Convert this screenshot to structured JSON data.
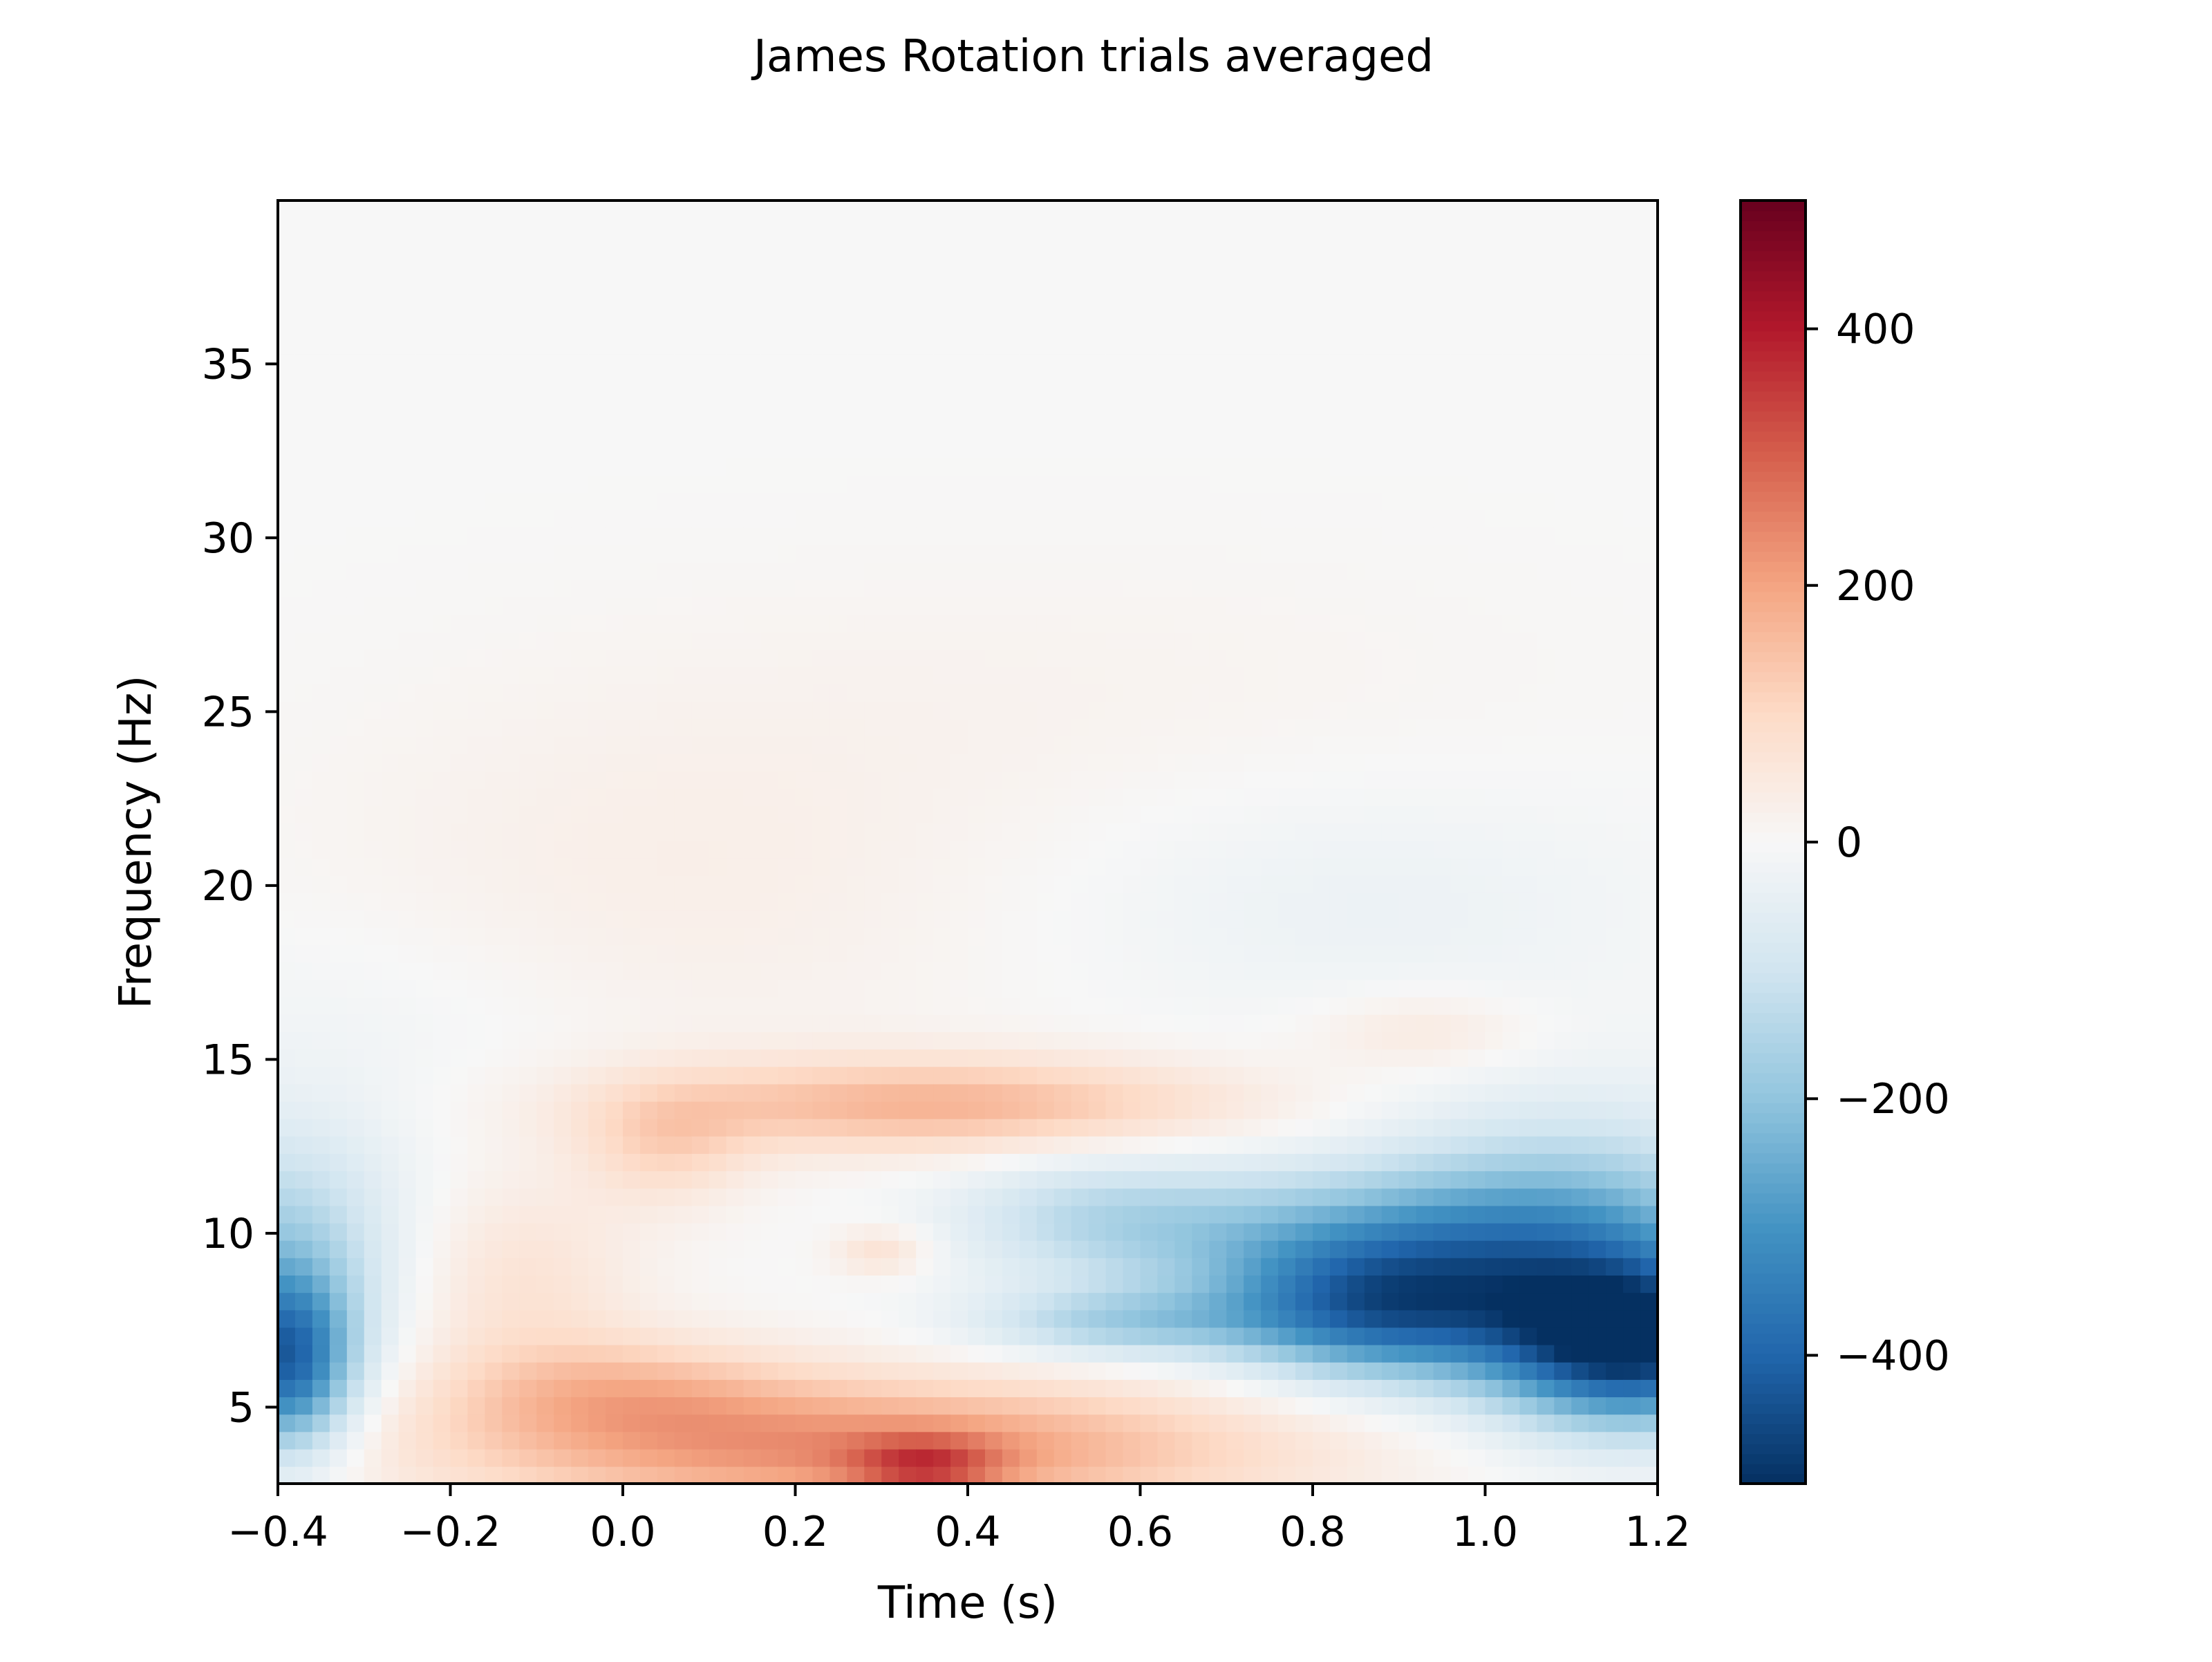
{
  "chart_data": {
    "type": "heatmap",
    "title": "James Rotation trials averaged",
    "xlabel": "Time (s)",
    "ylabel": "Frequency (Hz)",
    "xlim": [
      -0.4,
      1.2
    ],
    "ylim": [
      2.8,
      39.7
    ],
    "x_ticks": [
      -0.4,
      -0.2,
      0.0,
      0.2,
      0.4,
      0.6,
      0.8,
      1.0,
      1.2
    ],
    "x_tick_labels": [
      "−0.4",
      "−0.2",
      "0.0",
      "0.2",
      "0.4",
      "0.6",
      "0.8",
      "1.0",
      "1.2"
    ],
    "y_ticks": [
      5,
      10,
      15,
      20,
      25,
      30,
      35
    ],
    "y_tick_labels": [
      "5",
      "10",
      "15",
      "20",
      "25",
      "30",
      "35"
    ],
    "colorbar": {
      "colormap": "RdBu_r",
      "vmin": -500,
      "vmax": 500,
      "ticks": [
        400,
        200,
        0,
        -200,
        -400
      ],
      "tick_labels": [
        "400",
        "200",
        "0",
        "−200",
        "−400"
      ]
    },
    "grid": false,
    "resolution": {
      "time_step_s": 0.02,
      "freq_step_hz": 0.5
    },
    "features": [
      {
        "t": 0.35,
        "f": 3.5,
        "value": 400
      },
      {
        "t": 0.25,
        "f": 4.5,
        "value": 300
      },
      {
        "t": 0.0,
        "f": 5.5,
        "value": 240
      },
      {
        "t": 0.35,
        "f": 13.7,
        "value": 190
      },
      {
        "t": 0.05,
        "f": 12.5,
        "value": 120
      },
      {
        "t": 0.3,
        "f": 9.5,
        "value": 110
      },
      {
        "t": 0.93,
        "f": 15.8,
        "value": 60
      },
      {
        "t": -0.39,
        "f": 6.2,
        "value": -360
      },
      {
        "t": 1.17,
        "f": 6.8,
        "value": -470
      },
      {
        "t": 0.88,
        "f": 7.5,
        "value": -300
      },
      {
        "t": 0.55,
        "f": 7.5,
        "value": -180
      },
      {
        "t": 0.95,
        "f": 9.5,
        "value": -250
      },
      {
        "t": 0.8,
        "f": 19.0,
        "value": -30
      }
    ]
  }
}
